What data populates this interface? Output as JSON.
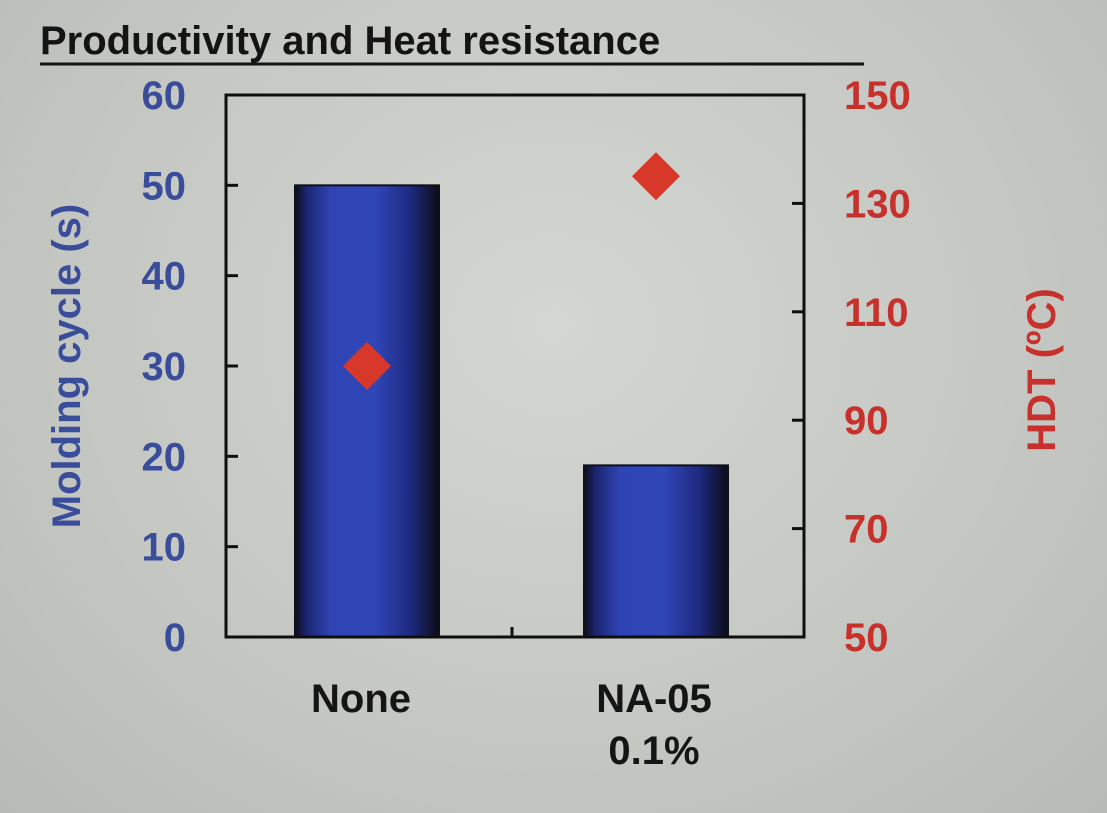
{
  "chart_data": {
    "type": "bar",
    "title": "Productivity and Heat resistance",
    "categories": [
      [
        "None"
      ],
      [
        "NA-05",
        "0.1%"
      ]
    ],
    "series": [
      {
        "name": "Molding cycle (s)",
        "type": "bar",
        "axis": "left",
        "values": [
          50,
          19
        ]
      },
      {
        "name": "HDT (ºC)",
        "type": "scatter",
        "marker": "diamond",
        "axis": "right",
        "values": [
          100,
          135
        ]
      }
    ],
    "ylabel": "Molding cycle (s)",
    "ylabel_right": "HDT (ºC)",
    "ylim": [
      0,
      60
    ],
    "ylim_right": [
      50,
      150
    ],
    "yticks": [
      0,
      10,
      20,
      30,
      40,
      50,
      60
    ],
    "yticks_right": [
      50,
      70,
      90,
      110,
      130,
      150
    ],
    "colors": {
      "bar": "#2a3fae",
      "bar_edge": "#101018",
      "marker": "#d8382a",
      "left_axis_text": "#3a4d9a",
      "right_axis_text": "#c8302c",
      "title": "#141414"
    },
    "grid": false
  }
}
